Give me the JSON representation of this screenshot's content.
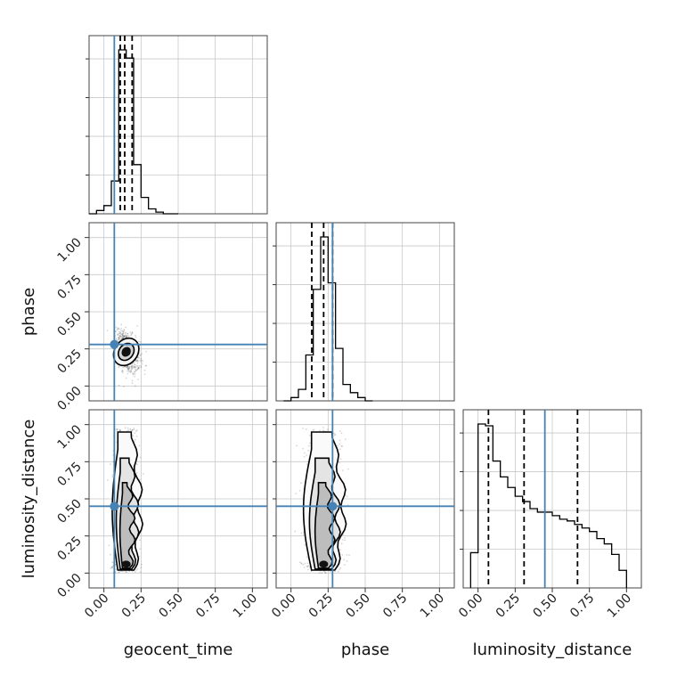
{
  "chart_data": {
    "type": "corner",
    "parameters": [
      "geocent_time",
      "phase",
      "luminosity_distance"
    ],
    "tick_labels": [
      "0.00",
      "0.25",
      "0.50",
      "0.75",
      "1.00"
    ],
    "xlim": [
      -0.1,
      1.1
    ],
    "ylim": [
      -0.1,
      1.1
    ],
    "grid": true,
    "truths": {
      "geocent_time": 0.07,
      "phase": 0.28,
      "luminosity_distance": 0.45
    },
    "truth_color": "#4682b4",
    "histograms": [
      {
        "parameter": "geocent_time",
        "bin_edges": [
          -0.1,
          -0.05,
          0.0,
          0.05,
          0.1,
          0.15,
          0.2,
          0.25,
          0.3,
          0.35,
          0.4,
          0.45,
          0.5
        ],
        "counts": [
          0,
          0.02,
          0.05,
          0.2,
          1.0,
          0.95,
          0.3,
          0.1,
          0.03,
          0.01,
          0,
          0
        ],
        "quantiles": [
          0.11,
          0.14,
          0.19
        ]
      },
      {
        "parameter": "phase",
        "bin_edges": [
          -0.05,
          0.0,
          0.05,
          0.1,
          0.15,
          0.2,
          0.25,
          0.3,
          0.35,
          0.4,
          0.45,
          0.5,
          0.55
        ],
        "counts": [
          0,
          0.02,
          0.07,
          0.28,
          0.68,
          1.0,
          0.72,
          0.32,
          0.1,
          0.05,
          0.02,
          0
        ],
        "quantiles": [
          0.14,
          0.22,
          0.28
        ]
      },
      {
        "parameter": "luminosity_distance",
        "bin_edges": [
          -0.05,
          0.0,
          0.05,
          0.1,
          0.15,
          0.2,
          0.25,
          0.3,
          0.35,
          0.4,
          0.45,
          0.5,
          0.55,
          0.6,
          0.65,
          0.7,
          0.75,
          0.8,
          0.85,
          0.9,
          0.95,
          1.0
        ],
        "counts": [
          0.2,
          0.93,
          0.92,
          0.72,
          0.63,
          0.57,
          0.52,
          0.49,
          0.45,
          0.43,
          0.43,
          0.41,
          0.39,
          0.38,
          0.36,
          0.34,
          0.32,
          0.28,
          0.25,
          0.19,
          0.1
        ],
        "quantiles": [
          0.07,
          0.31,
          0.67
        ]
      }
    ],
    "scatter_panels": [
      {
        "x": "geocent_time",
        "y": "phase",
        "center": [
          0.15,
          0.23
        ],
        "spread": [
          0.045,
          0.07
        ],
        "correlation": -0.4
      },
      {
        "x": "geocent_time",
        "y": "luminosity_distance",
        "center": [
          0.15,
          0.45
        ],
        "spread": [
          0.04,
          0.27
        ],
        "correlation": 0.0
      },
      {
        "x": "phase",
        "y": "luminosity_distance",
        "center": [
          0.22,
          0.45
        ],
        "spread": [
          0.06,
          0.27
        ],
        "correlation": 0.0
      }
    ]
  }
}
